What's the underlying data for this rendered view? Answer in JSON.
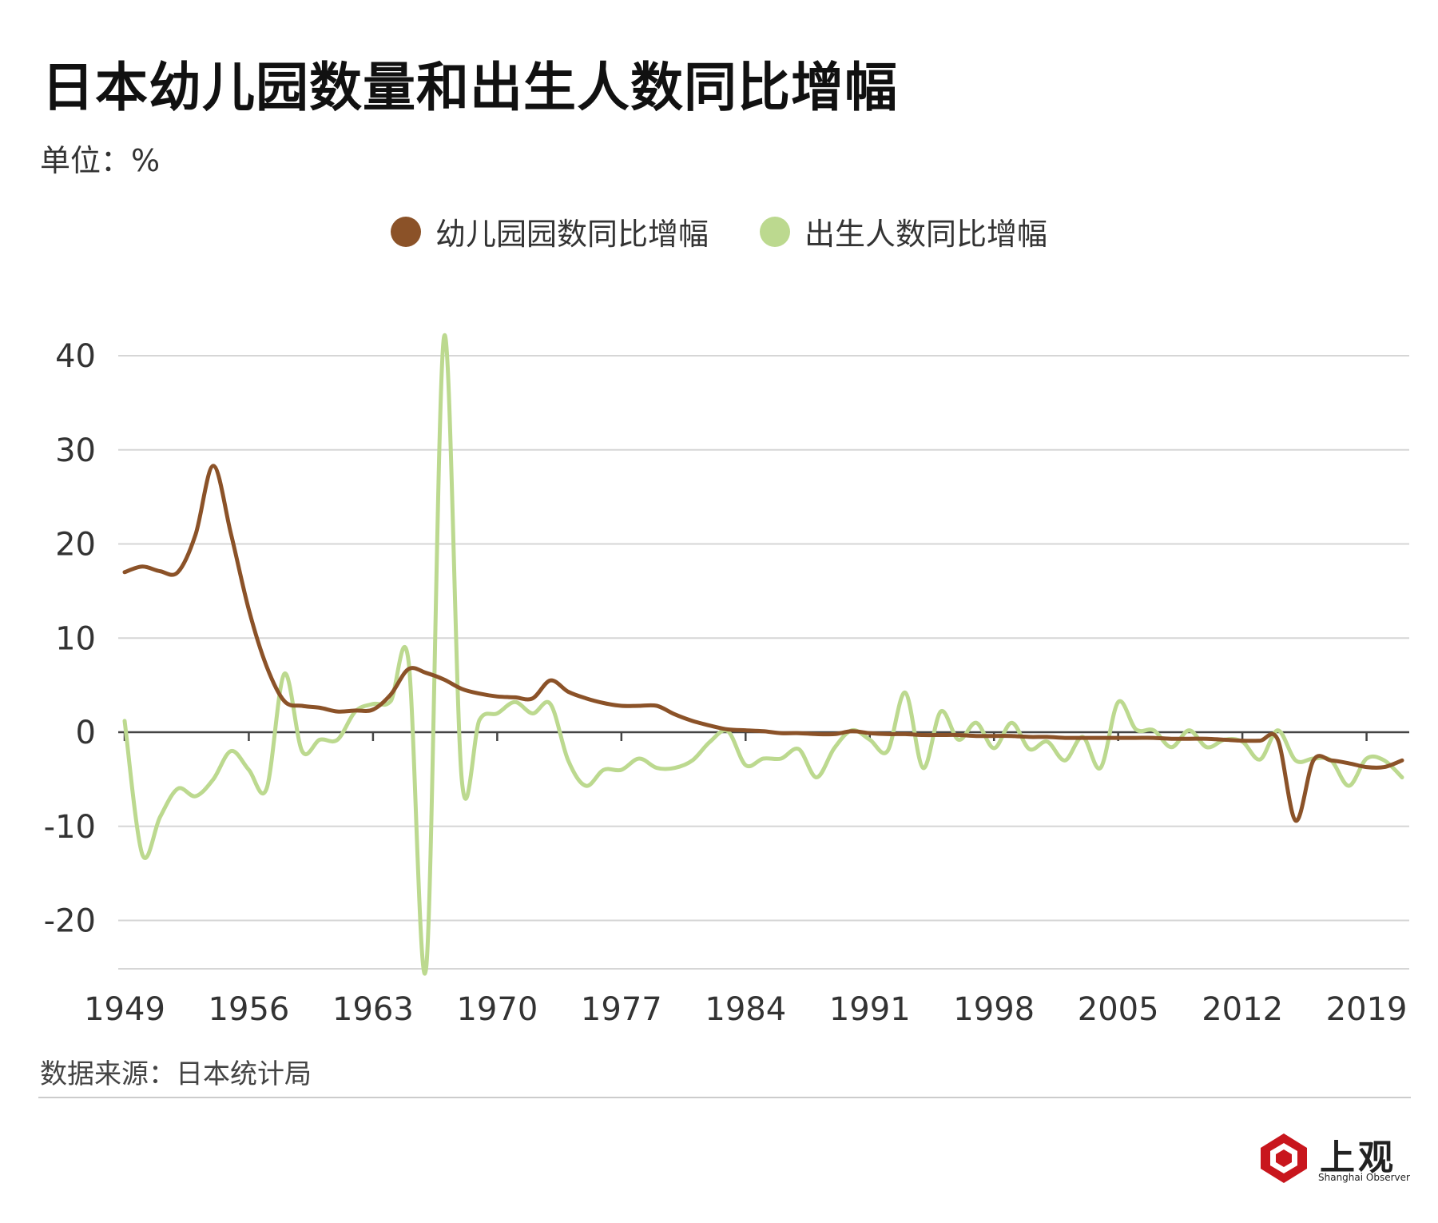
{
  "header": {
    "title": "日本幼儿园数量和出生人数同比增幅",
    "unit": "单位：%"
  },
  "legend": [
    {
      "label": "幼儿园园数同比增幅",
      "color": "#8b5228"
    },
    {
      "label": "出生人数同比增幅",
      "color": "#bcd98f"
    }
  ],
  "footer": {
    "source": "数据来源：日本统计局",
    "logo_text": "上观",
    "logo_sub": "Shanghai Observer"
  },
  "chart_data": {
    "type": "line",
    "title": "日本幼儿园数量和出生人数同比增幅",
    "ylabel": "单位：%",
    "ylim": [
      -25,
      40
    ],
    "yticks": [
      40,
      30,
      20,
      10,
      0,
      -10,
      -20
    ],
    "xlim": [
      1949,
      2021
    ],
    "xticks": [
      1949,
      1956,
      1963,
      1970,
      1977,
      1984,
      1991,
      1998,
      2005,
      2012,
      2019
    ],
    "grid": "horizontal",
    "legend_position": "top-center",
    "series": [
      {
        "name": "幼儿园园数同比增幅",
        "color": "#8b5228",
        "x": [
          1949,
          1950,
          1951,
          1952,
          1953,
          1954,
          1955,
          1956,
          1957,
          1958,
          1959,
          1960,
          1961,
          1962,
          1963,
          1964,
          1965,
          1966,
          1967,
          1968,
          1969,
          1970,
          1971,
          1972,
          1973,
          1974,
          1975,
          1976,
          1977,
          1978,
          1979,
          1980,
          1981,
          1982,
          1983,
          1984,
          1985,
          1986,
          1987,
          1988,
          1989,
          1990,
          1991,
          1992,
          1993,
          1994,
          1995,
          1996,
          1997,
          1998,
          1999,
          2000,
          2001,
          2002,
          2003,
          2004,
          2005,
          2006,
          2007,
          2008,
          2009,
          2010,
          2011,
          2012,
          2013,
          2014,
          2015,
          2016,
          2017,
          2018,
          2019,
          2020,
          2021
        ],
        "values": [
          17.0,
          17.6,
          17.1,
          17.0,
          21.0,
          28.3,
          21.0,
          13.0,
          7.0,
          3.3,
          2.8,
          2.6,
          2.2,
          2.3,
          2.4,
          4.0,
          6.7,
          6.3,
          5.6,
          4.6,
          4.1,
          3.8,
          3.7,
          3.6,
          5.5,
          4.3,
          3.6,
          3.1,
          2.8,
          2.8,
          2.8,
          1.9,
          1.2,
          0.7,
          0.3,
          0.2,
          0.1,
          -0.1,
          -0.1,
          -0.2,
          -0.2,
          0.1,
          -0.1,
          -0.2,
          -0.2,
          -0.3,
          -0.3,
          -0.3,
          -0.4,
          -0.4,
          -0.4,
          -0.5,
          -0.5,
          -0.6,
          -0.6,
          -0.6,
          -0.6,
          -0.6,
          -0.6,
          -0.7,
          -0.7,
          -0.7,
          -0.8,
          -0.9,
          -0.9,
          -0.8,
          -9.4,
          -3.0,
          -3.0,
          -3.3,
          -3.7,
          -3.7,
          -3.0
        ]
      },
      {
        "name": "出生人数同比增幅",
        "color": "#bcd98f",
        "x": [
          1949,
          1950,
          1951,
          1952,
          1953,
          1954,
          1955,
          1956,
          1957,
          1958,
          1959,
          1960,
          1961,
          1962,
          1963,
          1964,
          1965,
          1966,
          1967,
          1968,
          1969,
          1970,
          1971,
          1972,
          1973,
          1974,
          1975,
          1976,
          1977,
          1978,
          1979,
          1980,
          1981,
          1982,
          1983,
          1984,
          1985,
          1986,
          1987,
          1988,
          1989,
          1990,
          1991,
          1992,
          1993,
          1994,
          1995,
          1996,
          1997,
          1998,
          1999,
          2000,
          2001,
          2002,
          2003,
          2004,
          2005,
          2006,
          2007,
          2008,
          2009,
          2010,
          2011,
          2012,
          2013,
          2014,
          2015,
          2016,
          2017,
          2018,
          2019,
          2020,
          2021
        ],
        "values": [
          1.2,
          -13.0,
          -9.0,
          -6.0,
          -6.8,
          -5.0,
          -2.0,
          -4.0,
          -6.0,
          6.2,
          -2.0,
          -0.8,
          -0.8,
          2.2,
          3.0,
          3.3,
          7.6,
          -25.0,
          42.0,
          -5.0,
          1.3,
          2.0,
          3.2,
          2.0,
          3.0,
          -3.0,
          -5.7,
          -4.0,
          -4.0,
          -2.8,
          -3.8,
          -3.8,
          -3.0,
          -1.0,
          0.1,
          -3.5,
          -2.8,
          -2.8,
          -1.8,
          -4.8,
          -1.7,
          0.2,
          -0.8,
          -2.0,
          4.2,
          -3.8,
          2.2,
          -0.8,
          1.0,
          -1.7,
          1.0,
          -1.8,
          -1.0,
          -3.0,
          -0.5,
          -3.8,
          3.2,
          0.3,
          0.2,
          -1.6,
          0.2,
          -1.6,
          -0.8,
          -1.0,
          -2.9,
          0.2,
          -3.0,
          -2.8,
          -3.0,
          -5.7,
          -2.8,
          -3.0,
          -4.8
        ]
      }
    ]
  }
}
